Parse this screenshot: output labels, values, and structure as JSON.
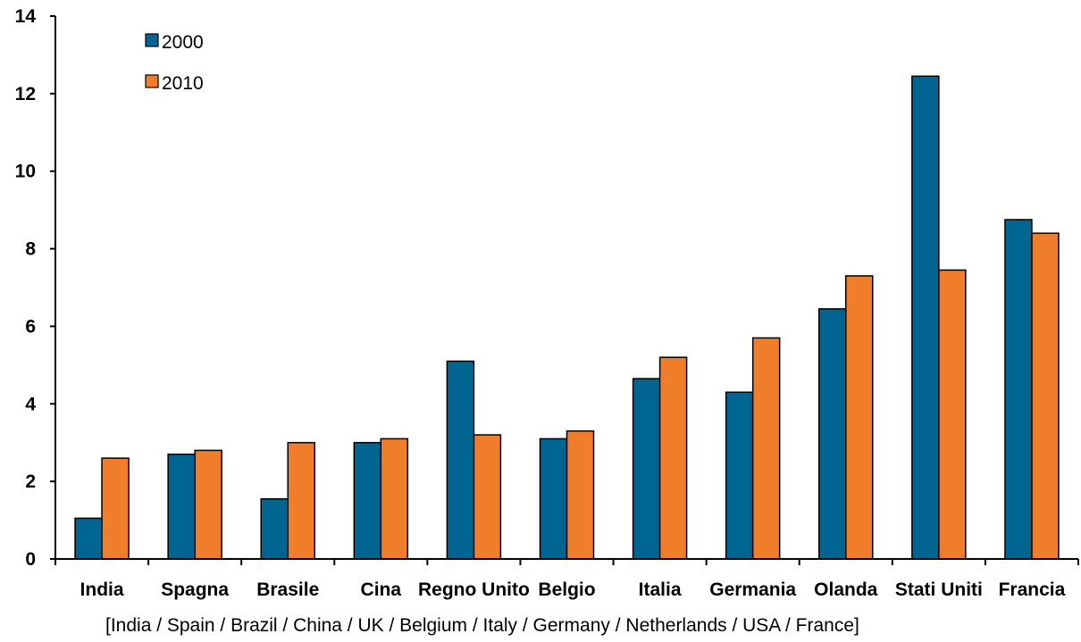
{
  "chart_data": {
    "type": "bar",
    "categories": [
      "India",
      "Spagna",
      "Brasile",
      "Cina",
      "Regno Unito",
      "Belgio",
      "Italia",
      "Germania",
      "Olanda",
      "Stati Uniti",
      "Francia"
    ],
    "series": [
      {
        "name": "2000",
        "values": [
          1.05,
          2.7,
          1.55,
          3.0,
          5.1,
          3.1,
          4.65,
          4.3,
          6.45,
          12.45,
          8.75
        ],
        "color": "#006591"
      },
      {
        "name": "2010",
        "values": [
          2.6,
          2.8,
          3.0,
          3.1,
          3.2,
          3.3,
          5.2,
          5.7,
          7.3,
          7.45,
          8.4
        ],
        "color": "#f07d2a"
      }
    ],
    "ylim": [
      0,
      14
    ],
    "yticks": [
      "0",
      "2",
      "4",
      "6",
      "8",
      "10",
      "12",
      "14"
    ],
    "legend_position": "top-left",
    "grid": false,
    "caption": "[India / Spain / Brazil / China / UK / Belgium / Italy / Germany / Netherlands / USA / France]"
  }
}
